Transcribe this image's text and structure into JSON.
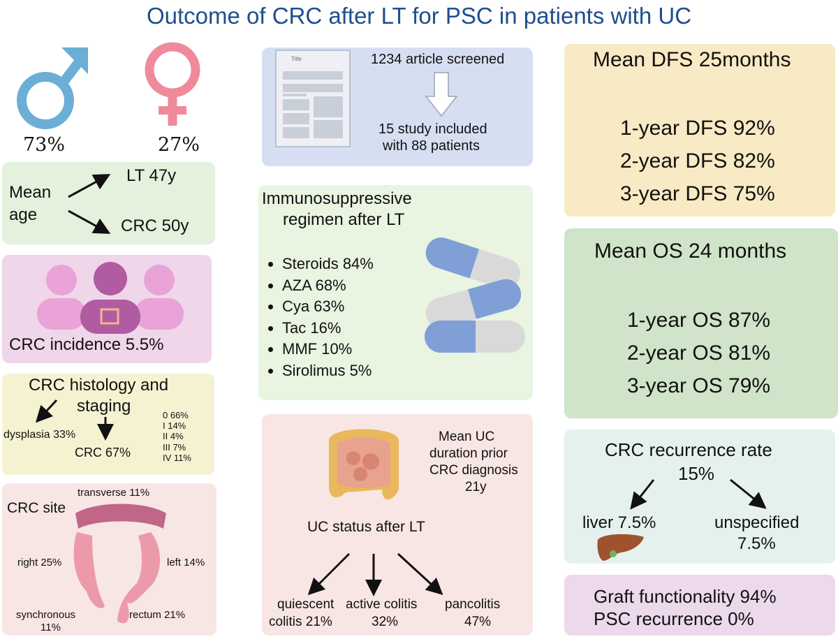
{
  "title": "Outcome of CRC after LT for PSC in patients with UC",
  "sex": {
    "male_pct": "73%",
    "female_pct": "27%",
    "male_icon": "male-symbol-icon",
    "female_icon": "female-symbol-icon"
  },
  "age": {
    "label_1": "Mean",
    "label_2": "age",
    "lt": "LT 47y",
    "crc": "CRC 50y"
  },
  "incidence": {
    "label": "CRC incidence 5.5%"
  },
  "histology": {
    "title_1": "CRC histology and",
    "title_2": "staging",
    "dysplasia": "dysplasia 33%",
    "crc": "CRC 67%",
    "stages": [
      "0 66%",
      "I 14%",
      "II 4%",
      "III 7%",
      "IV 11%"
    ]
  },
  "site": {
    "title": "CRC site",
    "transverse": "transverse 11%",
    "right": "right 25%",
    "left": "left 14%",
    "synchronous_1": "synchronous",
    "synchronous_2": "11%",
    "rectum": "rectum 21%"
  },
  "screening": {
    "doc_title": "Title",
    "screened": "1234 article screened",
    "included_1": "15 study included",
    "included_2": "with 88 patients"
  },
  "immuno": {
    "title_1": "Immunosuppressive",
    "title_2": "regimen after LT",
    "items": [
      "Steroids 84%",
      "AZA 68%",
      "Cya 63%",
      "Tac 16%",
      "MMF 10%",
      "Sirolimus 5%"
    ]
  },
  "uc": {
    "duration_1": "Mean UC",
    "duration_2": "duration prior",
    "duration_3": "CRC diagnosis",
    "duration_4": "21y",
    "status_title": "UC status after LT",
    "quiescent_1": "quiescent",
    "quiescent_2": "colitis 21%",
    "active_1": "active colitis",
    "active_2": "32%",
    "pan_1": "pancolitis",
    "pan_2": "47%"
  },
  "dfs": {
    "title": "Mean DFS 25months",
    "y1": "1-year DFS 92%",
    "y2": "2-year DFS 82%",
    "y3": "3-year DFS 75%"
  },
  "os": {
    "title": "Mean OS 24 months",
    "y1": "1-year OS 87%",
    "y2": "2-year OS 81%",
    "y3": "3-year OS 79%"
  },
  "recurrence": {
    "title_1": "CRC recurrence rate",
    "title_2": "15%",
    "liver": "liver 7.5%",
    "unspecified_1": "unspecified",
    "unspecified_2": "7.5%"
  },
  "graft": {
    "line_1": "Graft functionality 94%",
    "line_2": "PSC recurrence 0%"
  },
  "colors": {
    "title": "#1f4e8c",
    "male": "#6baed6",
    "female": "#ef8a9a",
    "pill_blue": "#7f9fd6",
    "pill_grey": "#d9d9d9",
    "colon": "#e89098"
  }
}
